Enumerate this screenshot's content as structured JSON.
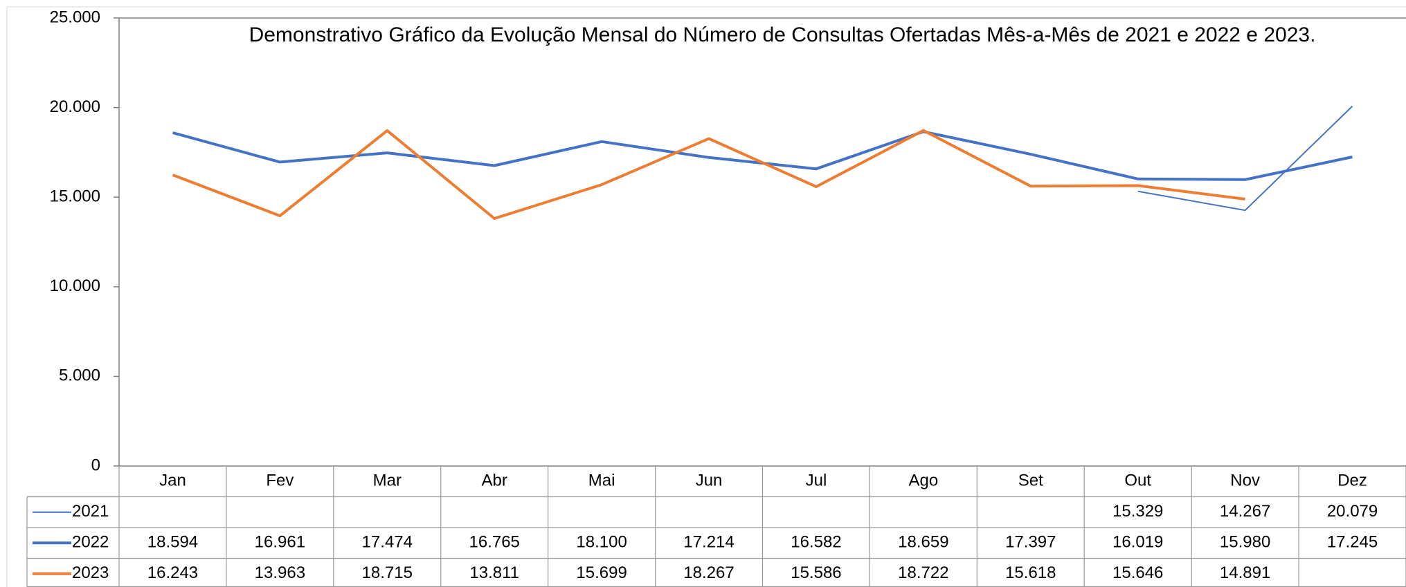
{
  "chart_data": {
    "type": "line",
    "title": "Demonstrativo Gráfico da Evolução Mensal do Número de Consultas Ofertadas Mês-a-Mês de 2021 e 2022 e 2023.",
    "categories": [
      "Jan",
      "Fev",
      "Mar",
      "Abr",
      "Mai",
      "Jun",
      "Jul",
      "Ago",
      "Set",
      "Out",
      "Nov",
      "Dez"
    ],
    "series": [
      {
        "name": "2021",
        "color": "#4472c4",
        "width": 2,
        "values": [
          null,
          null,
          null,
          null,
          null,
          null,
          null,
          null,
          null,
          15329,
          14267,
          20079
        ],
        "value_labels": [
          null,
          null,
          null,
          null,
          null,
          null,
          null,
          null,
          null,
          "15.329",
          "14.267",
          "20.079"
        ]
      },
      {
        "name": "2022",
        "color": "#4472c4",
        "width": 4,
        "values": [
          18594,
          16961,
          17474,
          16765,
          18100,
          17214,
          16582,
          18659,
          17397,
          16019,
          15980,
          17245
        ],
        "value_labels": [
          "18.594",
          "16.961",
          "17.474",
          "16.765",
          "18.100",
          "17.214",
          "16.582",
          "18.659",
          "17.397",
          "16.019",
          "15.980",
          "17.245"
        ]
      },
      {
        "name": "2023",
        "color": "#ed7d31",
        "width": 4,
        "values": [
          16243,
          13963,
          18715,
          13811,
          15699,
          18267,
          15586,
          18722,
          15618,
          15646,
          14891,
          null
        ],
        "value_labels": [
          "16.243",
          "13.963",
          "18.715",
          "13.811",
          "15.699",
          "18.267",
          "15.586",
          "18.722",
          "15.618",
          "15.646",
          "14.891",
          null
        ]
      }
    ],
    "ylim": [
      0,
      25000
    ],
    "yticks": [
      {
        "value": 0,
        "label": "0"
      },
      {
        "value": 5000,
        "label": "5.000"
      },
      {
        "value": 10000,
        "label": "10.000"
      },
      {
        "value": 15000,
        "label": "15.000"
      },
      {
        "value": 20000,
        "label": "20.000"
      },
      {
        "value": 25000,
        "label": "25.000"
      }
    ],
    "data_table": true
  }
}
